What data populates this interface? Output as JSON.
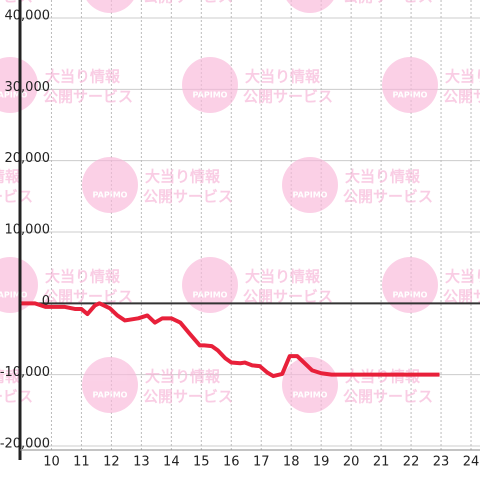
{
  "watermark": {
    "brand": "PAPIMO",
    "line1": "大当り情報",
    "line2": "公開サービス"
  },
  "chart_data": {
    "type": "line",
    "x": [
      9.0,
      9.45,
      9.8,
      10.45,
      10.8,
      11.0,
      11.2,
      11.45,
      11.6,
      11.95,
      12.2,
      12.45,
      12.9,
      13.2,
      13.45,
      13.7,
      14.0,
      14.3,
      14.6,
      14.95,
      15.1,
      15.35,
      15.55,
      15.8,
      16.0,
      16.3,
      16.45,
      16.7,
      16.95,
      17.2,
      17.4,
      17.7,
      17.95,
      18.2,
      18.45,
      18.7,
      19.0,
      19.35,
      22.95
    ],
    "series": [
      {
        "color": "#e8203a",
        "values": [
          0,
          0,
          -500,
          -500,
          -800,
          -800,
          -1500,
          -300,
          0,
          -700,
          -1700,
          -2400,
          -2100,
          -1700,
          -2700,
          -2100,
          -2100,
          -2700,
          -4200,
          -5900,
          -5900,
          -6000,
          -6600,
          -7700,
          -8300,
          -8400,
          -8300,
          -8700,
          -8800,
          -9700,
          -10200,
          -9900,
          -7400,
          -7400,
          -8400,
          -9400,
          -9800,
          -10000,
          -10000
        ]
      }
    ],
    "xlim": [
      8.95,
      24.3
    ],
    "xticks": [
      10,
      11,
      12,
      13,
      14,
      15,
      16,
      17,
      18,
      19,
      20,
      21,
      22,
      23,
      24
    ],
    "ylim": [
      -20000,
      40000
    ],
    "yticks": [
      {
        "value": -20000,
        "label": "-20,000"
      },
      {
        "value": -10000,
        "label": "-10,000"
      },
      0,
      {
        "value": 10000,
        "label": "10,000"
      },
      {
        "value": 20000,
        "label": "20,000"
      },
      {
        "value": 30000,
        "label": "30,000"
      },
      {
        "value": 40000,
        "label": "40,000"
      }
    ],
    "grid": true
  }
}
